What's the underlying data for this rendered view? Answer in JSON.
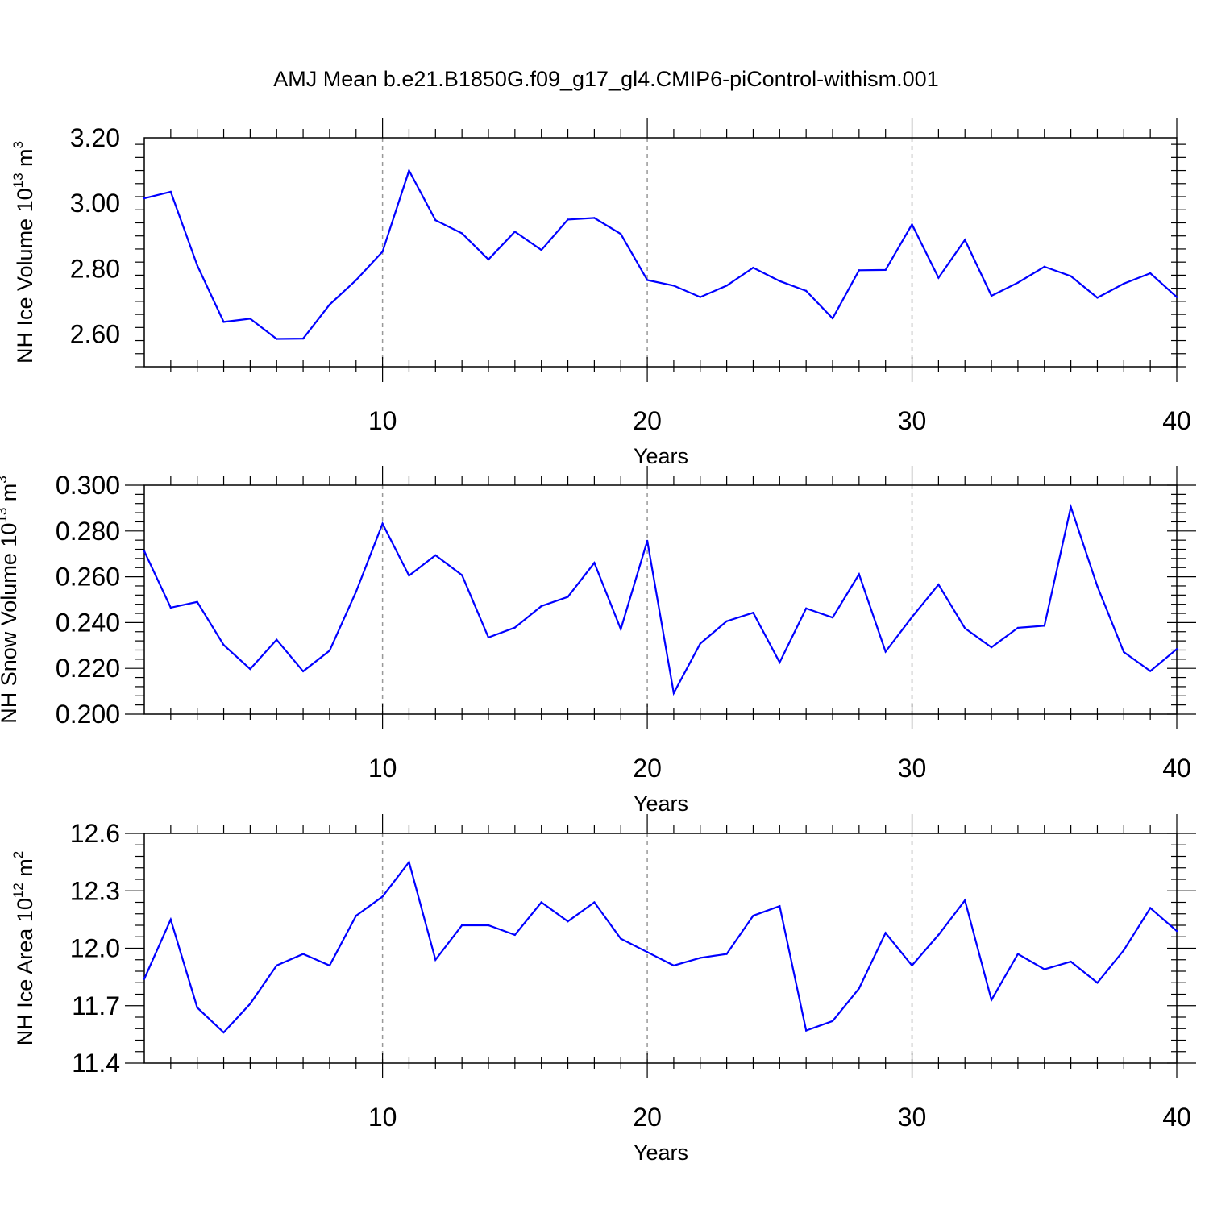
{
  "title": "AMJ Mean b.e21.B1850G.f09_g17_gl4.CMIP6-piControl-withism.001",
  "colors": {
    "line": "#0000ff",
    "axis": "#000000",
    "gridline": "#999999"
  },
  "chart_data": [
    {
      "type": "line",
      "xlabel": "Years",
      "ylabel": {
        "prefix": "NH Ice Volume 10",
        "exp": "13",
        "unit": " m",
        "unit_exp": "3"
      },
      "xlim": [
        1,
        40
      ],
      "ylim": [
        2.5,
        3.2
      ],
      "x_ticks": [
        10,
        20,
        30,
        40
      ],
      "x_tick_labels": [
        "10",
        "20",
        "30",
        "40"
      ],
      "y_ticks": [
        2.6,
        2.8,
        3.0,
        3.2
      ],
      "y_tick_labels": [
        "2.60",
        "2.80",
        "3.00",
        "3.20"
      ],
      "vertical_gridlines": [
        10,
        20,
        30
      ],
      "x": [
        1,
        2,
        3,
        4,
        5,
        6,
        7,
        8,
        9,
        10,
        11,
        12,
        13,
        14,
        15,
        16,
        17,
        18,
        19,
        20,
        21,
        22,
        23,
        24,
        25,
        26,
        27,
        28,
        29,
        30,
        31,
        32,
        33,
        34,
        35,
        36,
        37,
        38,
        39,
        40
      ],
      "values": [
        3.015,
        3.035,
        2.81,
        2.637,
        2.647,
        2.585,
        2.586,
        2.69,
        2.765,
        2.852,
        3.1,
        2.948,
        2.908,
        2.828,
        2.913,
        2.857,
        2.95,
        2.955,
        2.906,
        2.765,
        2.748,
        2.713,
        2.748,
        2.803,
        2.762,
        2.732,
        2.648,
        2.795,
        2.796,
        2.935,
        2.772,
        2.888,
        2.717,
        2.757,
        2.806,
        2.777,
        2.711,
        2.754,
        2.786,
        2.713
      ]
    },
    {
      "type": "line",
      "xlabel": "Years",
      "ylabel": {
        "prefix": "NH Snow Volume 10",
        "exp": "13",
        "unit": " m",
        "unit_exp": "3"
      },
      "xlim": [
        1,
        40
      ],
      "ylim": [
        0.2,
        0.3
      ],
      "x_ticks": [
        10,
        20,
        30,
        40
      ],
      "x_tick_labels": [
        "10",
        "20",
        "30",
        "40"
      ],
      "y_ticks": [
        0.2,
        0.22,
        0.24,
        0.26,
        0.28,
        0.3
      ],
      "y_tick_labels": [
        "0.200",
        "0.220",
        "0.240",
        "0.260",
        "0.280",
        "0.300"
      ],
      "vertical_gridlines": [
        10,
        20,
        30
      ],
      "x": [
        1,
        2,
        3,
        4,
        5,
        6,
        7,
        8,
        9,
        10,
        11,
        12,
        13,
        14,
        15,
        16,
        17,
        18,
        19,
        20,
        21,
        22,
        23,
        24,
        25,
        26,
        27,
        28,
        29,
        30,
        31,
        32,
        33,
        34,
        35,
        36,
        37,
        38,
        39,
        40
      ],
      "values": [
        0.2712,
        0.2465,
        0.249,
        0.2302,
        0.2197,
        0.2325,
        0.2187,
        0.2277,
        0.2535,
        0.2832,
        0.2605,
        0.2694,
        0.2607,
        0.2335,
        0.2378,
        0.2472,
        0.2512,
        0.2661,
        0.2371,
        0.2757,
        0.2092,
        0.2308,
        0.2406,
        0.2443,
        0.2226,
        0.2462,
        0.2422,
        0.2611,
        0.2273,
        0.2424,
        0.2566,
        0.2375,
        0.2292,
        0.2377,
        0.2386,
        0.2905,
        0.2558,
        0.2271,
        0.2188,
        0.2284
      ]
    },
    {
      "type": "line",
      "xlabel": "Years",
      "ylabel": {
        "prefix": "NH Ice Area 10",
        "exp": "12",
        "unit": " m",
        "unit_exp": "2"
      },
      "xlim": [
        1,
        40
      ],
      "ylim": [
        11.4,
        12.6
      ],
      "x_ticks": [
        10,
        20,
        30,
        40
      ],
      "x_tick_labels": [
        "10",
        "20",
        "30",
        "40"
      ],
      "y_ticks": [
        11.4,
        11.7,
        12.0,
        12.3,
        12.6
      ],
      "y_tick_labels": [
        "11.4",
        "11.7",
        "12.0",
        "12.3",
        "12.6"
      ],
      "vertical_gridlines": [
        10,
        20,
        30
      ],
      "x": [
        1,
        2,
        3,
        4,
        5,
        6,
        7,
        8,
        9,
        10,
        11,
        12,
        13,
        14,
        15,
        16,
        17,
        18,
        19,
        20,
        21,
        22,
        23,
        24,
        25,
        26,
        27,
        28,
        29,
        30,
        31,
        32,
        33,
        34,
        35,
        36,
        37,
        38,
        39,
        40
      ],
      "values": [
        11.84,
        12.15,
        11.69,
        11.56,
        11.71,
        11.91,
        11.97,
        11.91,
        12.17,
        12.27,
        12.45,
        11.94,
        12.12,
        12.12,
        12.07,
        12.24,
        12.14,
        12.24,
        12.05,
        11.98,
        11.91,
        11.95,
        11.97,
        12.17,
        12.22,
        11.57,
        11.62,
        11.79,
        12.08,
        11.91,
        12.07,
        12.25,
        11.73,
        11.97,
        11.89,
        11.93,
        11.82,
        11.99,
        12.21,
        12.09
      ]
    }
  ]
}
